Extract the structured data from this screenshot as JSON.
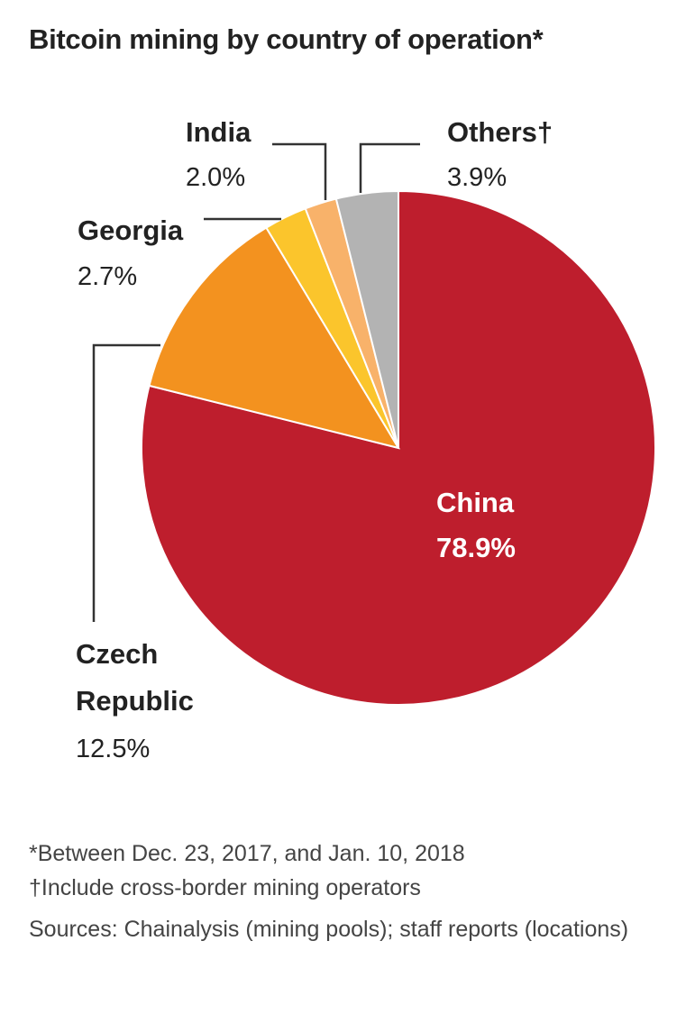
{
  "chart_data": {
    "type": "pie",
    "title": "Bitcoin mining by country of operation*",
    "unit": "%",
    "slices": [
      {
        "label": "China",
        "value": 78.9,
        "display": "78.9%",
        "color": "#be1e2d"
      },
      {
        "label": "Czech Republic",
        "value": 12.5,
        "display": "12.5%",
        "color": "#f3921f"
      },
      {
        "label": "Georgia",
        "value": 2.7,
        "display": "2.7%",
        "color": "#fbc52c"
      },
      {
        "label": "India",
        "value": 2.0,
        "display": "2.0%",
        "color": "#f8b26a"
      },
      {
        "label": "Others†",
        "value": 3.9,
        "display": "3.9%",
        "color": "#b3b3b3"
      }
    ],
    "start": "12 o'clock",
    "direction": "clockwise",
    "legend": "none"
  },
  "footnotes": {
    "date_note": "*Between Dec. 23, 2017, and Jan. 10, 2018",
    "others_note": "†Include cross-border mining operators",
    "sources": "Sources: Chainalysis (mining pools); staff reports (locations)"
  }
}
